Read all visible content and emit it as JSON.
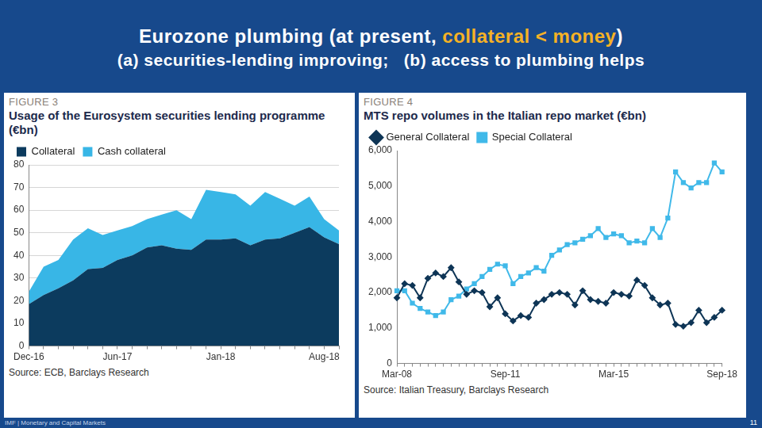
{
  "slide": {
    "title_parts": [
      "Eurozone plumbing (at present, ",
      "collateral < money",
      ")"
    ],
    "subtitle": "(a) securities-lending improving;   (b) access to plumbing helps",
    "footer": "IMF | Monetary and Capital Markets",
    "page": 11
  },
  "chart_data": [
    {
      "type": "area",
      "label": "FIGURE 3",
      "title": "Usage of the Eurosystem securities lending programme (€bn)",
      "source": "Source: ECB, Barclays Research",
      "categories": [
        "Dec-16",
        null,
        null,
        null,
        null,
        null,
        "Jun-17",
        null,
        null,
        null,
        null,
        null,
        null,
        "Jan-18",
        null,
        null,
        null,
        null,
        null,
        null,
        "Aug-18",
        null
      ],
      "series": [
        {
          "name": "Collateral",
          "color": "#0c3b5e",
          "values": [
            18.5,
            22.5,
            25.5,
            29,
            34,
            34.5,
            38,
            40,
            43.5,
            44.5,
            43,
            42.5,
            47,
            47,
            47.5,
            44.5,
            47,
            47.5,
            50,
            52.5,
            48,
            45
          ]
        },
        {
          "name": "Cash collateral",
          "color": "#38b6e6",
          "values": [
            5.5,
            12.5,
            12.5,
            18,
            18,
            14.5,
            13,
            13,
            12.5,
            13.5,
            17,
            13.5,
            22,
            21,
            19.5,
            17.5,
            21,
            17.5,
            12,
            13.5,
            8,
            6
          ]
        }
      ],
      "stacked": true,
      "ylim": [
        0,
        80
      ],
      "yticks": [
        0,
        10,
        20,
        30,
        40,
        50,
        60,
        70,
        80
      ],
      "grid": true,
      "legend": "top-left"
    },
    {
      "type": "line",
      "label": "FIGURE 4",
      "title": "MTS repo volumes in the Italian repo market (€bn)",
      "source": "Source: Italian Treasury, Barclays Research",
      "categories": [
        "Mar-08",
        null,
        null,
        null,
        null,
        null,
        null,
        null,
        null,
        null,
        null,
        null,
        null,
        null,
        "Sep-11",
        null,
        null,
        null,
        null,
        null,
        null,
        null,
        null,
        null,
        null,
        null,
        null,
        null,
        "Mar-15",
        null,
        null,
        null,
        null,
        null,
        null,
        null,
        null,
        null,
        null,
        null,
        null,
        null,
        "Sep-18"
      ],
      "series": [
        {
          "name": "General Collateral",
          "color": "#0e3556",
          "marker": "diamond",
          "line_style": "solid",
          "values": [
            1850,
            2250,
            2200,
            1850,
            2400,
            2550,
            2450,
            2700,
            2300,
            1950,
            2050,
            2000,
            1600,
            1850,
            1400,
            1200,
            1350,
            1300,
            1700,
            1800,
            1950,
            2000,
            1950,
            1650,
            2050,
            1800,
            1750,
            1700,
            2000,
            1950,
            1900,
            2350,
            2200,
            1850,
            1650,
            1700,
            1100,
            1050,
            1150,
            1500,
            1150,
            1300,
            1500
          ]
        },
        {
          "name": "Special Collateral",
          "color": "#40b9e9",
          "marker": "square",
          "line_style": "solid",
          "values": [
            2050,
            2050,
            1700,
            1550,
            1450,
            1350,
            1450,
            1800,
            1900,
            2100,
            2250,
            2450,
            2650,
            2800,
            2750,
            2250,
            2450,
            2550,
            2700,
            2600,
            3050,
            3200,
            3350,
            3400,
            3500,
            3600,
            3800,
            3550,
            3650,
            3600,
            3400,
            3450,
            3400,
            3800,
            3550,
            4100,
            5400,
            5100,
            4950,
            5100,
            5100,
            5650,
            5400
          ]
        }
      ],
      "ylim": [
        0,
        6000
      ],
      "yticks": [
        0,
        {
          "value": 1000,
          "label": "1,000"
        },
        {
          "value": 2000,
          "label": "2,000"
        },
        {
          "value": 3000,
          "label": "3,000"
        },
        {
          "value": 4000,
          "label": "4,000"
        },
        {
          "value": 5000,
          "label": "5,000"
        },
        {
          "value": 6000,
          "label": "6,000"
        }
      ],
      "grid": false,
      "legend": "top-left"
    }
  ]
}
